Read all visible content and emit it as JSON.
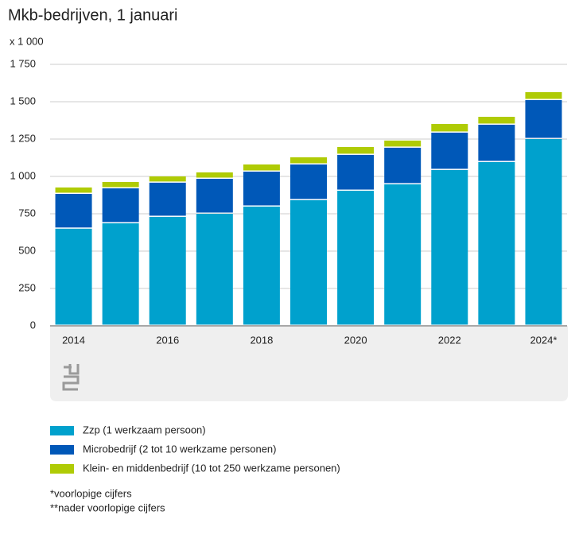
{
  "chart_data": {
    "type": "stacked_bar",
    "title": "Mkb-bedrijven, 1 januari",
    "y_label": "x 1 000",
    "categories": [
      "2014",
      null,
      "2016",
      null,
      "2018",
      null,
      "2020",
      null,
      "2022",
      null,
      "2024*"
    ],
    "series": [
      {
        "name": "Zzp (1 werkzaam persoon)",
        "color": "#00a1cd",
        "values": [
          650,
          686,
          729,
          750,
          798,
          841,
          904,
          947,
          1043,
          1096,
          1250
        ]
      },
      {
        "name": "Microbedrijf (2 tot 10 werkzame personen)",
        "color": "#0058b8",
        "values": [
          233,
          234,
          229,
          234,
          234,
          239,
          240,
          245,
          250,
          250,
          261
        ]
      },
      {
        "name": "Klein- en middenbedrijf (10 tot 250 werkzame personen)",
        "color": "#afcb05",
        "values": [
          43,
          43,
          42,
          43,
          48,
          48,
          53,
          48,
          58,
          53,
          53
        ]
      }
    ],
    "ylim": [
      0,
      1750
    ],
    "yticks": [
      0,
      250,
      500,
      750,
      {
        "value": 1000,
        "label": "1 000"
      },
      {
        "value": 1250,
        "label": "1 250"
      },
      {
        "value": 1500,
        "label": "1 500"
      },
      {
        "value": 1750,
        "label": "1 750"
      }
    ],
    "grid": true,
    "notes": [
      "*voorlopige cijfers",
      "**nader voorlopige cijfers"
    ]
  }
}
